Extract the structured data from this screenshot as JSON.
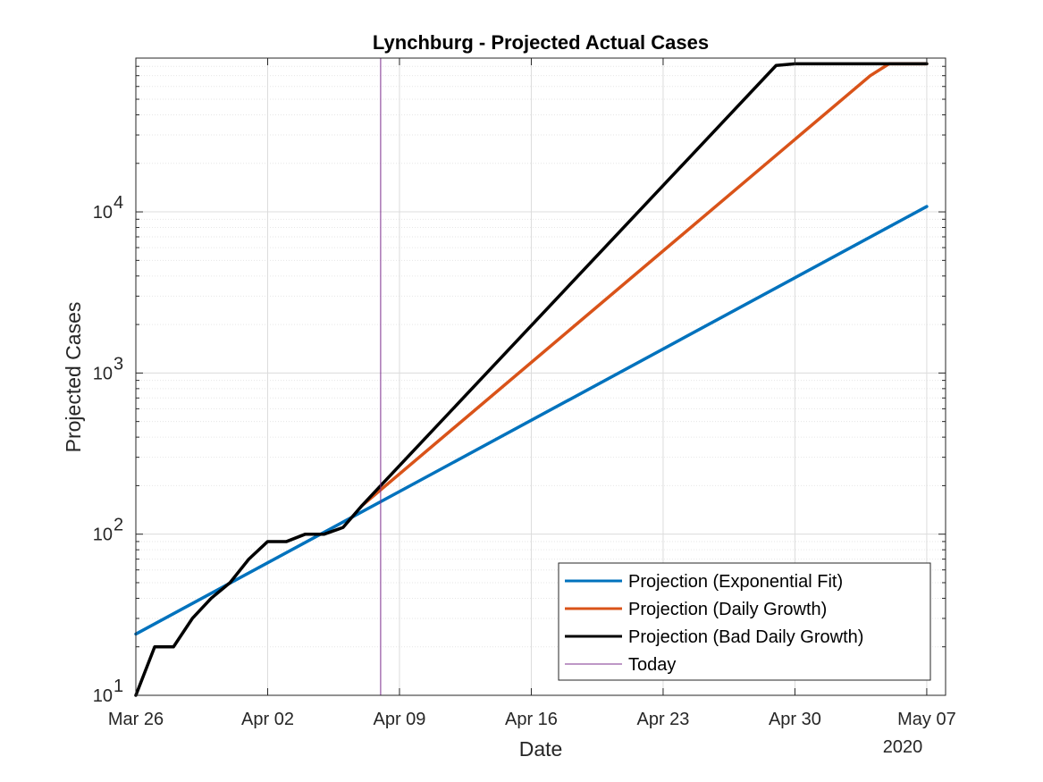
{
  "chart_data": {
    "type": "line",
    "title": "Lynchburg - Projected Actual Cases",
    "xlabel": "Date",
    "ylabel": "Projected Cases",
    "x_year_label": "2020",
    "yscale": "log",
    "xlim": [
      "2020-03-26",
      "2020-05-08"
    ],
    "ylim": [
      10,
      90000
    ],
    "x_ticks": [
      {
        "date": "2020-03-26",
        "label": "Mar 26"
      },
      {
        "date": "2020-04-02",
        "label": "Apr 02"
      },
      {
        "date": "2020-04-09",
        "label": "Apr 09"
      },
      {
        "date": "2020-04-16",
        "label": "Apr 16"
      },
      {
        "date": "2020-04-23",
        "label": "Apr 23"
      },
      {
        "date": "2020-04-30",
        "label": "Apr 30"
      },
      {
        "date": "2020-05-07",
        "label": "May 07"
      }
    ],
    "y_ticks": [
      {
        "value": 10,
        "base": "10",
        "exp": "1"
      },
      {
        "value": 100,
        "base": "10",
        "exp": "2"
      },
      {
        "value": 1000,
        "base": "10",
        "exp": "3"
      },
      {
        "value": 10000,
        "base": "10",
        "exp": "4"
      }
    ],
    "grid": true,
    "legend_position": "bottom-right",
    "today": "2020-04-08",
    "series": [
      {
        "name": "Projection (Exponential Fit)",
        "color": "#0072BD",
        "points": [
          [
            "2020-03-26",
            24
          ],
          [
            "2020-05-07",
            10800
          ]
        ]
      },
      {
        "name": "Projection (Daily Growth)",
        "color": "#D95319",
        "points": [
          [
            "2020-04-07",
            150
          ],
          [
            "2020-05-04",
            70000
          ],
          [
            "2020-05-05",
            83000
          ],
          [
            "2020-05-07",
            83000
          ]
        ]
      },
      {
        "name": "Projection (Bad Daily Growth)",
        "color": "#000000",
        "points": [
          [
            "2020-03-26",
            10
          ],
          [
            "2020-03-27",
            20
          ],
          [
            "2020-03-28",
            20
          ],
          [
            "2020-03-29",
            30
          ],
          [
            "2020-03-30",
            40
          ],
          [
            "2020-03-31",
            50
          ],
          [
            "2020-04-01",
            70
          ],
          [
            "2020-04-02",
            90
          ],
          [
            "2020-04-03",
            90
          ],
          [
            "2020-04-04",
            100
          ],
          [
            "2020-04-05",
            100
          ],
          [
            "2020-04-06",
            110
          ],
          [
            "2020-04-07",
            150
          ],
          [
            "2020-04-08",
            200
          ],
          [
            "2020-04-29",
            81000
          ],
          [
            "2020-04-30",
            83000
          ],
          [
            "2020-05-07",
            83000
          ]
        ]
      }
    ],
    "legend": [
      {
        "label": "Projection (Exponential Fit)",
        "color": "#0072BD",
        "style": "thick"
      },
      {
        "label": "Projection (Daily Growth)",
        "color": "#D95319",
        "style": "thick"
      },
      {
        "label": "Projection (Bad Daily Growth)",
        "color": "#000000",
        "style": "thick"
      },
      {
        "label": "Today",
        "color": "#7E2F8E",
        "style": "thin"
      }
    ]
  }
}
